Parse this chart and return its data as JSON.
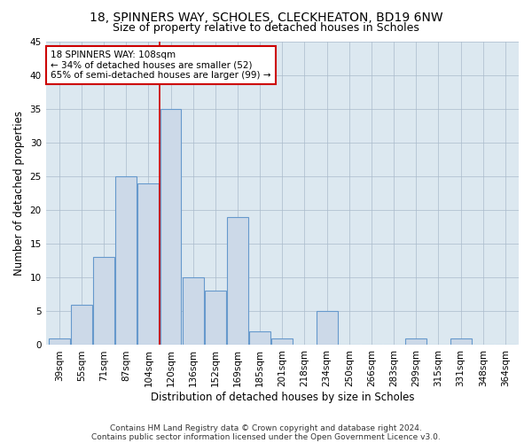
{
  "title1": "18, SPINNERS WAY, SCHOLES, CLECKHEATON, BD19 6NW",
  "title2": "Size of property relative to detached houses in Scholes",
  "xlabel": "Distribution of detached houses by size in Scholes",
  "ylabel": "Number of detached properties",
  "bar_labels": [
    "39sqm",
    "55sqm",
    "71sqm",
    "87sqm",
    "104sqm",
    "120sqm",
    "136sqm",
    "152sqm",
    "169sqm",
    "185sqm",
    "201sqm",
    "218sqm",
    "234sqm",
    "250sqm",
    "266sqm",
    "283sqm",
    "299sqm",
    "315sqm",
    "331sqm",
    "348sqm",
    "364sqm"
  ],
  "bar_values": [
    1,
    6,
    13,
    25,
    24,
    35,
    10,
    8,
    19,
    2,
    1,
    0,
    5,
    0,
    0,
    0,
    1,
    0,
    1,
    0,
    0
  ],
  "bar_color": "#ccd9e8",
  "bar_edge_color": "#6699cc",
  "vline_x": 4.5,
  "vline_color": "#cc0000",
  "ylim": [
    0,
    45
  ],
  "yticks": [
    0,
    5,
    10,
    15,
    20,
    25,
    30,
    35,
    40,
    45
  ],
  "annotation_line1": "18 SPINNERS WAY: 108sqm",
  "annotation_line2": "← 34% of detached houses are smaller (52)",
  "annotation_line3": "65% of semi-detached houses are larger (99) →",
  "annotation_box_color": "#ffffff",
  "annotation_box_edge": "#cc0000",
  "footer1": "Contains HM Land Registry data © Crown copyright and database right 2024.",
  "footer2": "Contains public sector information licensed under the Open Government Licence v3.0.",
  "plot_bg_color": "#dce8f0",
  "title1_fontsize": 10,
  "title2_fontsize": 9,
  "xlabel_fontsize": 8.5,
  "ylabel_fontsize": 8.5,
  "tick_fontsize": 7.5,
  "annot_fontsize": 7.5
}
